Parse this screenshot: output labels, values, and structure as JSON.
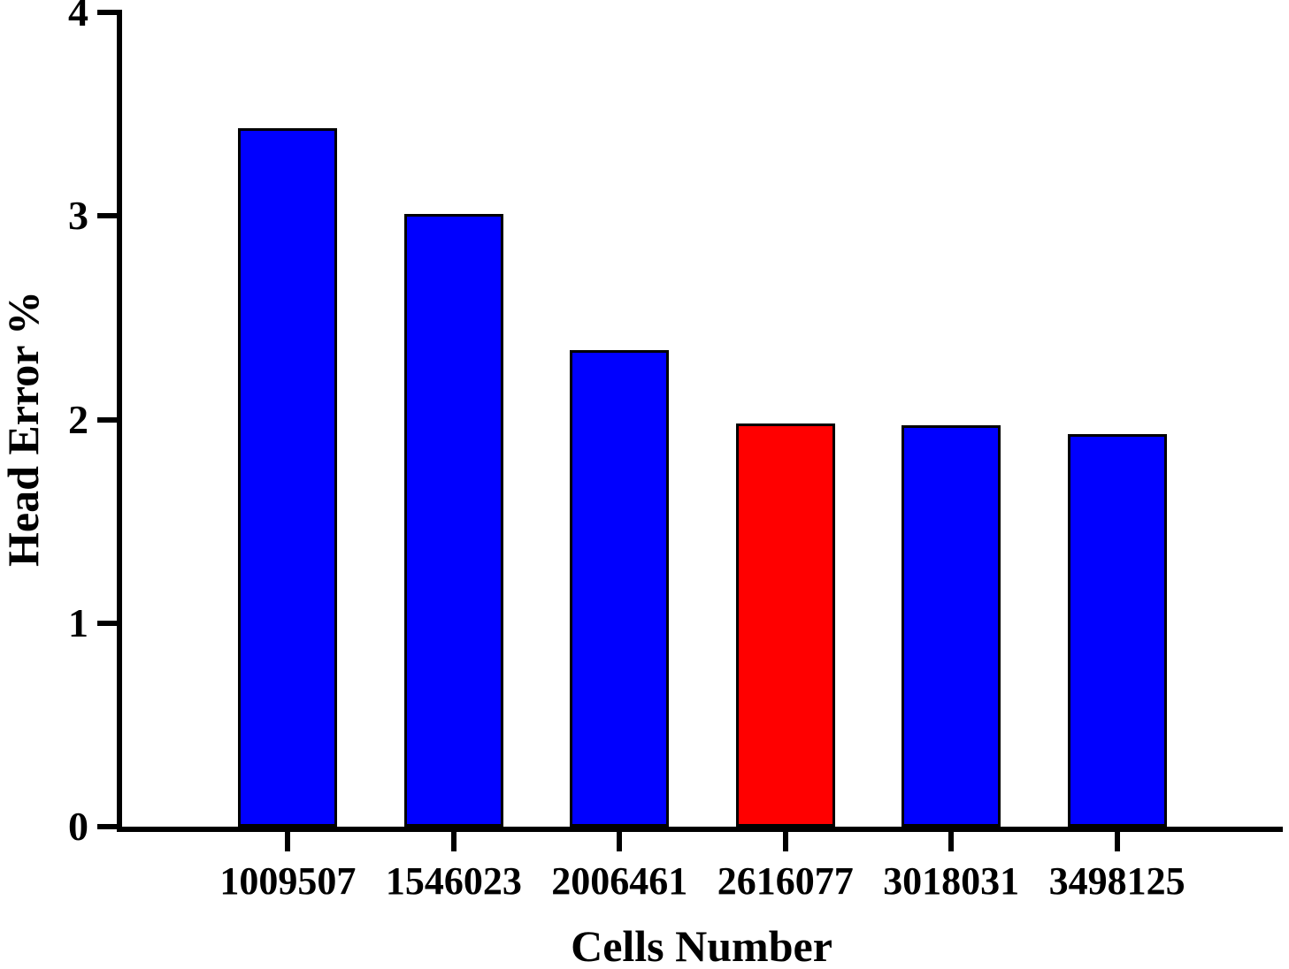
{
  "chart_data": {
    "type": "bar",
    "xlabel": "Cells Number",
    "ylabel": "Head Error %",
    "categories": [
      "1009507",
      "1546023",
      "2006461",
      "2616077",
      "3018031",
      "3498125"
    ],
    "values": [
      3.43,
      3.01,
      2.34,
      1.98,
      1.97,
      1.93
    ],
    "bar_colors": [
      "#0000FF",
      "#0000FF",
      "#0000FF",
      "#FF0000",
      "#0000FF",
      "#0000FF"
    ],
    "default_bar_color": "#0000FF",
    "highlight_bar_color": "#FF0000",
    "highlighted_category": "2616077",
    "y_ticks": [
      0,
      1,
      2,
      3,
      4
    ],
    "ylim": [
      0,
      4
    ],
    "grid": false,
    "legend": "none",
    "axis_color": "#000000",
    "background_color": "#FFFFFF",
    "bar_border_color": "#000000"
  }
}
